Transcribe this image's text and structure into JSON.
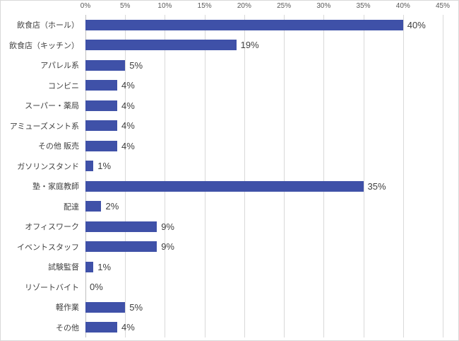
{
  "chart_data": {
    "type": "bar",
    "orientation": "horizontal",
    "title": "",
    "xlabel": "",
    "ylabel": "",
    "xlim": [
      0,
      45
    ],
    "grid": true,
    "legend": false,
    "bar_color": "#3f51a8",
    "ticks": [
      0,
      5,
      10,
      15,
      20,
      25,
      30,
      35,
      40,
      45
    ],
    "tick_labels": [
      "0%",
      "5%",
      "10%",
      "15%",
      "20%",
      "25%",
      "30%",
      "35%",
      "40%",
      "45%"
    ],
    "categories": [
      "飲食店（ホール）",
      "飲食店（キッチン）",
      "アパレル系",
      "コンビニ",
      "スーパー・薬局",
      "アミューズメント系",
      "その他 販売",
      "ガソリンスタンド",
      "塾・家庭教師",
      "配達",
      "オフィスワーク",
      "イベントスタッフ",
      "試験監督",
      "リゾートバイト",
      "軽作業",
      "その他"
    ],
    "values": [
      40,
      19,
      5,
      4,
      4,
      4,
      4,
      1,
      35,
      2,
      9,
      9,
      1,
      0,
      5,
      4
    ],
    "value_labels": [
      "40%",
      "19%",
      "5%",
      "4%",
      "4%",
      "4%",
      "4%",
      "1%",
      "35%",
      "2%",
      "9%",
      "9%",
      "1%",
      "0%",
      "5%",
      "4%"
    ]
  }
}
